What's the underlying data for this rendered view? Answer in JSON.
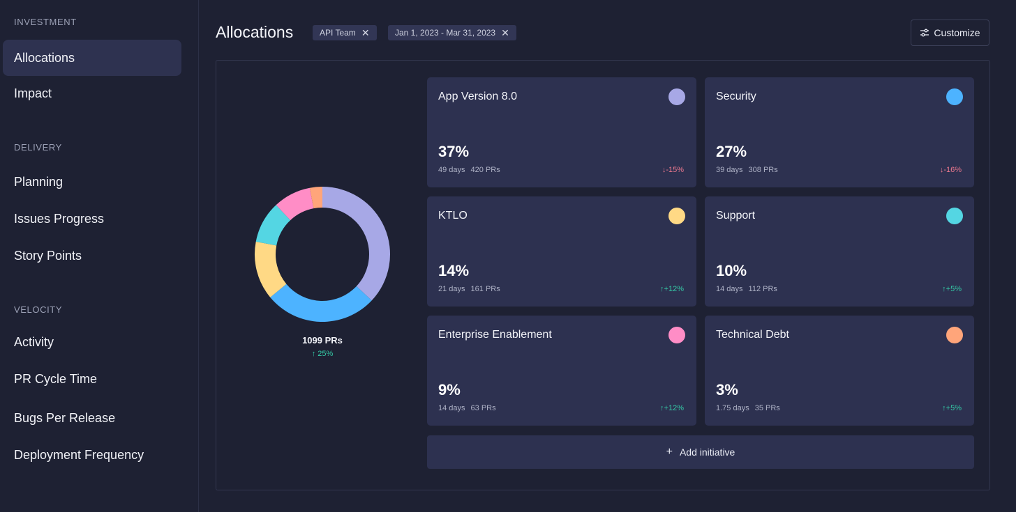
{
  "sidebar": {
    "sections": [
      {
        "title": "INVESTMENT",
        "items": [
          {
            "label": "Allocations",
            "active": true
          },
          {
            "label": "Impact",
            "active": false
          }
        ]
      },
      {
        "title": "DELIVERY",
        "items": [
          {
            "label": "Planning"
          },
          {
            "label": "Issues Progress"
          },
          {
            "label": "Story Points"
          }
        ]
      },
      {
        "title": "VELOCITY",
        "items": [
          {
            "label": "Activity"
          },
          {
            "label": "PR Cycle Time"
          },
          {
            "label": "Bugs Per Release"
          },
          {
            "label": "Deployment Frequency"
          }
        ]
      }
    ]
  },
  "header": {
    "title": "Allocations",
    "filters": [
      {
        "label": "API Team"
      },
      {
        "label": "Jan 1, 2023 - Mar 31, 2023"
      }
    ],
    "customize_label": "Customize"
  },
  "donut": {
    "total_label": "1099 PRs",
    "change_label": "↑ 25%"
  },
  "initiatives": [
    {
      "name": "App Version 8.0",
      "percent": "37%",
      "days": "49 days",
      "prs": "420 PRs",
      "delta": "↓-15%",
      "trend": "down",
      "color": "#a7a8e6",
      "share": 37
    },
    {
      "name": "Security",
      "percent": "27%",
      "days": "39 days",
      "prs": "308 PRs",
      "delta": "↓-16%",
      "trend": "down",
      "color": "#4db3ff",
      "share": 27
    },
    {
      "name": "KTLO",
      "percent": "14%",
      "days": "21 days",
      "prs": "161 PRs",
      "delta": "↑+12%",
      "trend": "up",
      "color": "#ffd985",
      "share": 14
    },
    {
      "name": "Support",
      "percent": "10%",
      "days": "14 days",
      "prs": "112 PRs",
      "delta": "↑+5%",
      "trend": "up",
      "color": "#54d6e3",
      "share": 10
    },
    {
      "name": "Enterprise Enablement",
      "percent": "9%",
      "days": "14 days",
      "prs": "63 PRs",
      "delta": "↑+12%",
      "trend": "up",
      "color": "#ff8dc6",
      "share": 9
    },
    {
      "name": "Technical Debt",
      "percent": "3%",
      "days": "1.75 days",
      "prs": "35 PRs",
      "delta": "↑+5%",
      "trend": "up",
      "color": "#ffa57a",
      "share": 3
    }
  ],
  "add_initiative_label": "Add initiative"
}
